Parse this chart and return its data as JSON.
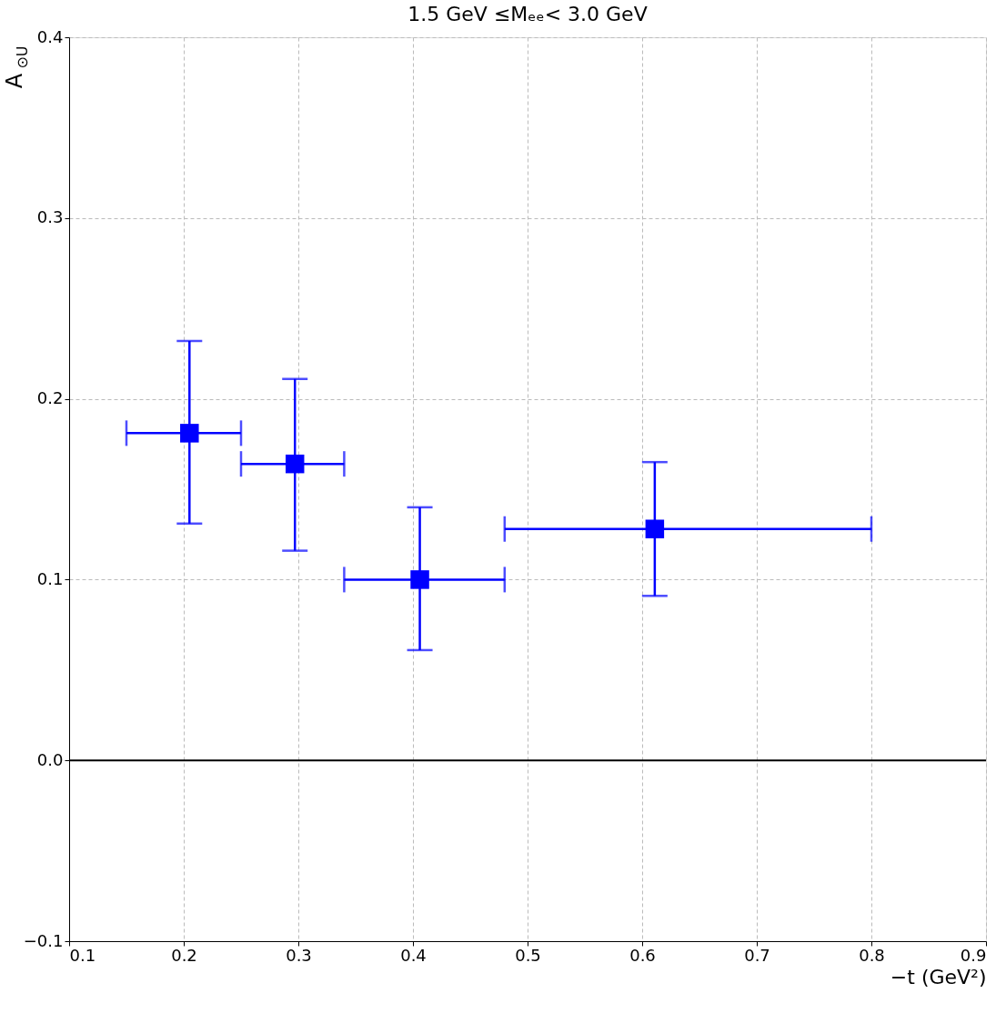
{
  "chart_data": {
    "type": "scatter",
    "title": "1.5 GeV ≤Mₑₑ< 3.0 GeV",
    "xlabel": "−t (GeV²)",
    "ylabel": "A$_{⊙U}$",
    "x": [
      0.205,
      0.297,
      0.406,
      0.611
    ],
    "values": [
      0.181,
      0.164,
      0.1,
      0.128
    ],
    "errors": [
      [
        0.131,
        0.232
      ],
      [
        0.116,
        0.211
      ],
      [
        0.061,
        0.14
      ],
      [
        0.091,
        0.165
      ]
    ],
    "xerrors": [
      [
        0.15,
        0.25
      ],
      [
        0.25,
        0.34
      ],
      [
        0.34,
        0.48
      ],
      [
        0.48,
        0.8
      ]
    ],
    "color": "#0000ff",
    "marker": "square",
    "xlim": [
      0.1,
      0.9
    ],
    "xticks": [
      0.1,
      0.2,
      0.3,
      0.4,
      0.5,
      0.6,
      0.7,
      0.8,
      0.9
    ],
    "ylim": [
      -0.1,
      0.4
    ],
    "yticks": [
      -0.1,
      {
        "value": 0.0,
        "label": "0.0"
      },
      0.1,
      0.2,
      0.3,
      0.4
    ],
    "ref_lines": [
      {
        "axis": "y",
        "value": 0.0,
        "color": "#000000"
      }
    ],
    "grid": true
  }
}
